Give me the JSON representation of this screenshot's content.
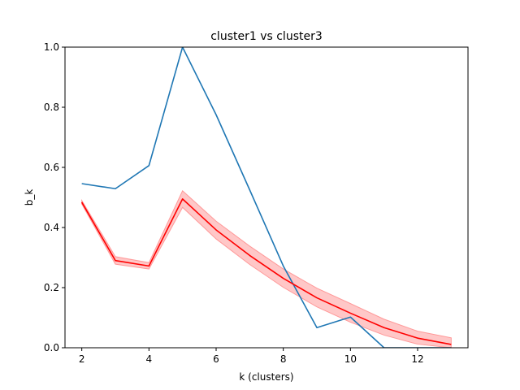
{
  "chart_data": {
    "type": "line",
    "title": "cluster1 vs cluster3",
    "xlabel": "k (clusters)",
    "ylabel": "b_k",
    "xlim": [
      1.5,
      13.5
    ],
    "ylim": [
      0,
      1.0
    ],
    "xticks": [
      2,
      4,
      6,
      8,
      10,
      12
    ],
    "yticks": [
      0.0,
      0.2,
      0.4,
      0.6,
      0.8,
      1.0
    ],
    "ytick_labels": [
      "0.0",
      "0.2",
      "0.4",
      "0.6",
      "0.8",
      "1.0"
    ],
    "grid": false,
    "legend": "none",
    "x": [
      2,
      3,
      4,
      5,
      6,
      7,
      8,
      9,
      10,
      11,
      12,
      13
    ],
    "series": [
      {
        "color": "#1f77b4",
        "values": [
          0.546,
          0.529,
          0.606,
          1.0,
          0.775,
          0.525,
          0.272,
          0.067,
          0.102,
          0.0,
          0.0,
          0.0
        ]
      },
      {
        "color": "#ff0000",
        "values": [
          0.484,
          0.29,
          0.272,
          0.495,
          0.392,
          0.307,
          0.231,
          0.166,
          0.115,
          0.067,
          0.032,
          0.011
        ],
        "band_lower": [
          0.478,
          0.278,
          0.262,
          0.467,
          0.362,
          0.277,
          0.201,
          0.136,
          0.085,
          0.042,
          0.012,
          0.0
        ],
        "band_upper": [
          0.49,
          0.303,
          0.283,
          0.522,
          0.421,
          0.338,
          0.262,
          0.198,
          0.147,
          0.095,
          0.055,
          0.033
        ],
        "band_color": "#ff9999"
      }
    ]
  }
}
